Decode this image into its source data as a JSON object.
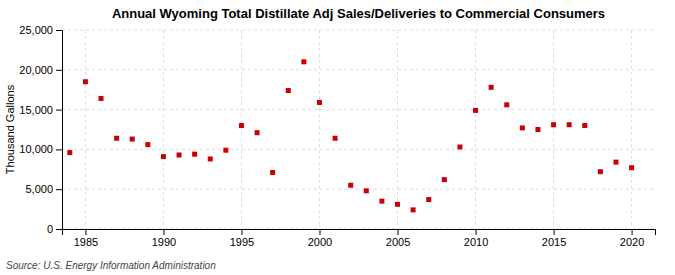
{
  "chart_data": {
    "type": "scatter",
    "title": "Annual Wyoming Total Distillate Adj Sales/Deliveries to Commercial Consumers",
    "y_label": "Thousand Gallons",
    "annotations": [
      "Source: U.S. Energy Information Administration"
    ],
    "x": [
      1984,
      1985,
      1986,
      1987,
      1988,
      1989,
      1990,
      1991,
      1992,
      1993,
      1994,
      1995,
      1996,
      1997,
      1998,
      1999,
      2000,
      2001,
      2002,
      2003,
      2004,
      2005,
      2006,
      2007,
      2008,
      2009,
      2010,
      2011,
      2012,
      2013,
      2014,
      2015,
      2016,
      2017,
      2018,
      2019,
      2020
    ],
    "values": [
      9600,
      18500,
      16400,
      11400,
      11300,
      10600,
      9100,
      9300,
      9400,
      8800,
      9900,
      13000,
      12100,
      7100,
      17400,
      21000,
      15900,
      11400,
      5500,
      4800,
      3500,
      3100,
      2400,
      3700,
      6200,
      10300,
      14900,
      17800,
      15600,
      12700,
      12500,
      13100,
      13100,
      13000,
      7200,
      8400,
      7700
    ],
    "color": "#cc0000",
    "marker": "square",
    "xlim": [
      1983.5,
      2021.5
    ],
    "xticks": [
      1985,
      1990,
      1995,
      2000,
      2005,
      2010,
      2015,
      2020
    ],
    "ylim": [
      0,
      25000
    ],
    "yticks": [
      0,
      {
        "value": 5000,
        "label": "5,000"
      },
      {
        "value": 10000,
        "label": "10,000"
      },
      {
        "value": 15000,
        "label": "15,000"
      },
      {
        "value": 20000,
        "label": "20,000"
      },
      {
        "value": 25000,
        "label": "25,000"
      }
    ],
    "grid": true
  }
}
